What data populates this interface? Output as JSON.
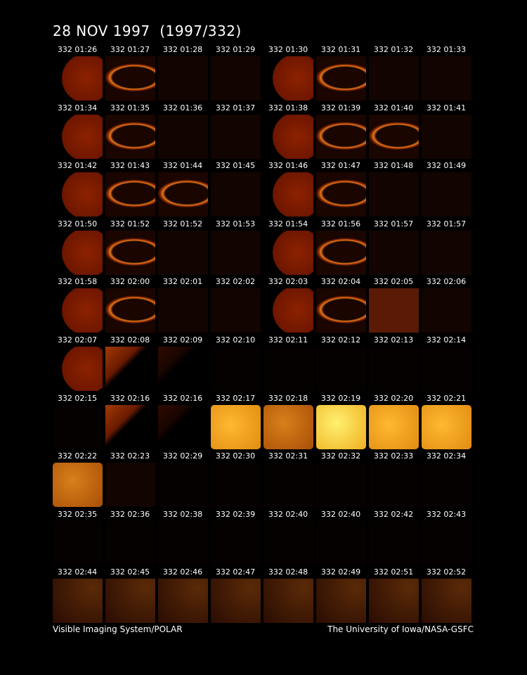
{
  "header": {
    "title": "28 NOV 1997  (1997/332)"
  },
  "frames": [
    "332 01:26",
    "332 01:27",
    "332 01:28",
    "332 01:29",
    "332 01:30",
    "332 01:31",
    "332 01:32",
    "332 01:33",
    "332 01:34",
    "332 01:35",
    "332 01:36",
    "332 01:37",
    "332 01:38",
    "332 01:39",
    "332 01:40",
    "332 01:41",
    "332 01:42",
    "332 01:43",
    "332 01:44",
    "332 01:45",
    "332 01:46",
    "332 01:47",
    "332 01:48",
    "332 01:49",
    "332 01:50",
    "332 01:52",
    "332 01:52",
    "332 01:53",
    "332 01:54",
    "332 01:56",
    "332 01:57",
    "332 01:57",
    "332 01:58",
    "332 02:00",
    "332 02:01",
    "332 02:02",
    "332 02:03",
    "332 02:04",
    "332 02:05",
    "332 02:06",
    "332 02:07",
    "332 02:08",
    "332 02:09",
    "332 02:10",
    "332 02:11",
    "332 02:12",
    "332 02:13",
    "332 02:14",
    "332 02:15",
    "332 02:16",
    "332 02:16",
    "332 02:17",
    "332 02:18",
    "332 02:19",
    "332 02:20",
    "332 02:21",
    "332 02:22",
    "332 02:23",
    "332 02:29",
    "332 02:30",
    "332 02:31",
    "332 02:32",
    "332 02:33",
    "332 02:34",
    "332 02:35",
    "332 02:36",
    "332 02:38",
    "332 02:39",
    "332 02:40",
    "332 02:40",
    "332 02:42",
    "332 02:43",
    "332 02:44",
    "332 02:45",
    "332 02:46",
    "332 02:47",
    "332 02:48",
    "332 02:49",
    "332 02:51",
    "332 02:52"
  ],
  "footer": {
    "left": "Visible Imaging System/POLAR",
    "right": "The University of Iowa/NASA-GSFC"
  }
}
